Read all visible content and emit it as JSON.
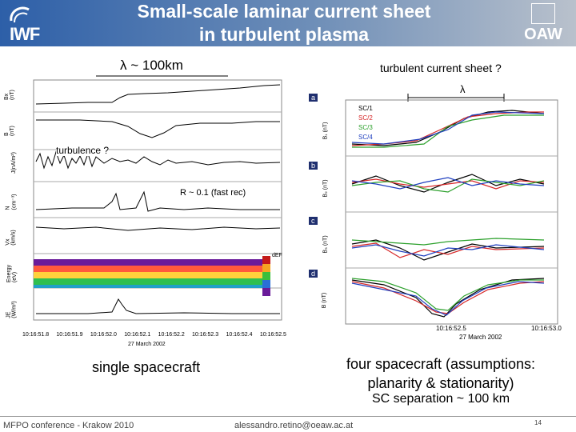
{
  "header": {
    "title_line1": "Small-scale laminar current sheet",
    "title_line2": "in turbulent plasma",
    "logo_left": "IWF",
    "logo_right": "OAW"
  },
  "labels": {
    "lambda_top": "λ ~ 100km",
    "turbulent_sheet": "turbulent current sheet ?",
    "turbulence": "turbulence ?",
    "r_fast": "R ~ 0.1 (fast rec)",
    "single_sc": "single spacecraft",
    "four_sc_1": "four spacecraft (assumptions:",
    "four_sc_2": "planarity & stationarity)",
    "sc_sep": "SC separation ~ 100 km"
  },
  "left_figure": {
    "ylabels": [
      "Bx (nT)",
      "B (nT)",
      "J(nA/m²)",
      "N (cm⁻³)",
      "Vx (km/s)",
      "Energy (eV)",
      "JE (W/m³)"
    ],
    "ticks": [
      "10:16:51.8",
      "10:16:51.9",
      "10:16:52.0",
      "10:16:52.1",
      "10:16:52.2",
      "10:16:52.3",
      "10:16:52.4",
      "10:16:52.5"
    ],
    "date": "27 March 2002",
    "colorbar_label": "dEF"
  },
  "right_figure": {
    "panels": [
      "a",
      "b",
      "c",
      "d"
    ],
    "legend": [
      "SC/1",
      "SC/2",
      "SC/3",
      "SC/4"
    ],
    "legend_colors": [
      "#000000",
      "#d62728",
      "#2ca02c",
      "#1f3fbf"
    ],
    "lambda_label": "λ",
    "ylabels": [
      "B₁ (nT)",
      "B₂ (nT)",
      "B₃ (nT)",
      "B (nT)"
    ],
    "ticks": [
      "10:16:52.5",
      "10:16:53.0"
    ],
    "date": "27 March 2002"
  },
  "footer": {
    "conference": "MFPO conference - Krakow 2010",
    "email": "alessandro.retino@oeaw.ac.at",
    "page": "14"
  }
}
